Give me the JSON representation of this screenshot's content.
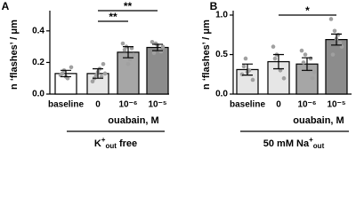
{
  "chart_data": [
    {
      "type": "bar",
      "panel": "A",
      "ylabel": "n ‘flashes’ / μm",
      "categories": [
        "baseline",
        "0",
        "10⁻⁶",
        "10⁻⁵"
      ],
      "series": [
        {
          "values": [
            0.13,
            0.13,
            0.265,
            0.295
          ],
          "errors": [
            0.02,
            0.03,
            0.035,
            0.02
          ],
          "colors": [
            "#ffffff",
            "#e6e6e6",
            "#a6a6a6",
            "#8c8c8c"
          ],
          "points": [
            [
              0.12,
              0.15,
              0.1,
              0.17,
              0.13,
              0.11
            ],
            [
              0.08,
              0.12,
              0.16,
              0.19,
              0.1,
              0.14,
              0.11,
              0.13
            ],
            [
              0.32,
              0.3,
              0.22,
              0.25,
              0.28,
              0.19,
              0.29
            ],
            [
              0.33,
              0.32,
              0.28,
              0.3,
              0.26,
              0.31,
              0.27
            ]
          ]
        }
      ],
      "ylim": [
        0,
        0.5
      ],
      "yticks": [
        {
          "value": 0,
          "label": "0.0"
        },
        0.2,
        0.4
      ],
      "significance": [
        {
          "from": 1,
          "to": 2,
          "label": "**"
        },
        {
          "from": 1,
          "to": 3,
          "label": "**"
        }
      ],
      "group_label": "ouabain, M",
      "condition": [
        "K",
        "+",
        "out",
        " free"
      ]
    },
    {
      "type": "bar",
      "panel": "B",
      "ylabel": "n ‘flashes’ / μm",
      "categories": [
        "baseline",
        "0",
        "10⁻⁶",
        "10⁻⁵"
      ],
      "series": [
        {
          "values": [
            0.31,
            0.41,
            0.38,
            0.69
          ],
          "errors": [
            0.07,
            0.09,
            0.08,
            0.07
          ],
          "colors": [
            "#e6e6e6",
            "#e6e6e6",
            "#a6a6a6",
            "#8c8c8c"
          ],
          "points": [
            [
              0.25,
              0.45,
              0.3,
              0.18,
              0.35,
              0.28
            ],
            [
              0.6,
              0.5,
              0.3,
              0.2,
              0.45
            ],
            [
              0.55,
              0.5,
              0.3,
              0.2,
              0.4,
              0.35,
              0.45,
              0.28
            ],
            [
              0.95,
              0.8,
              0.75,
              0.6,
              0.5,
              0.7,
              0.65
            ]
          ]
        }
      ],
      "ylim": [
        0,
        1.0
      ],
      "yticks": [
        {
          "value": 0,
          "label": "0.0"
        },
        0.5,
        {
          "value": 1,
          "label": "1.0"
        }
      ],
      "significance": [
        {
          "from": 1,
          "to": 3,
          "label": "*"
        }
      ],
      "group_label": "ouabain, M",
      "condition": [
        "50 mM Na",
        "+",
        "out",
        ""
      ]
    }
  ]
}
